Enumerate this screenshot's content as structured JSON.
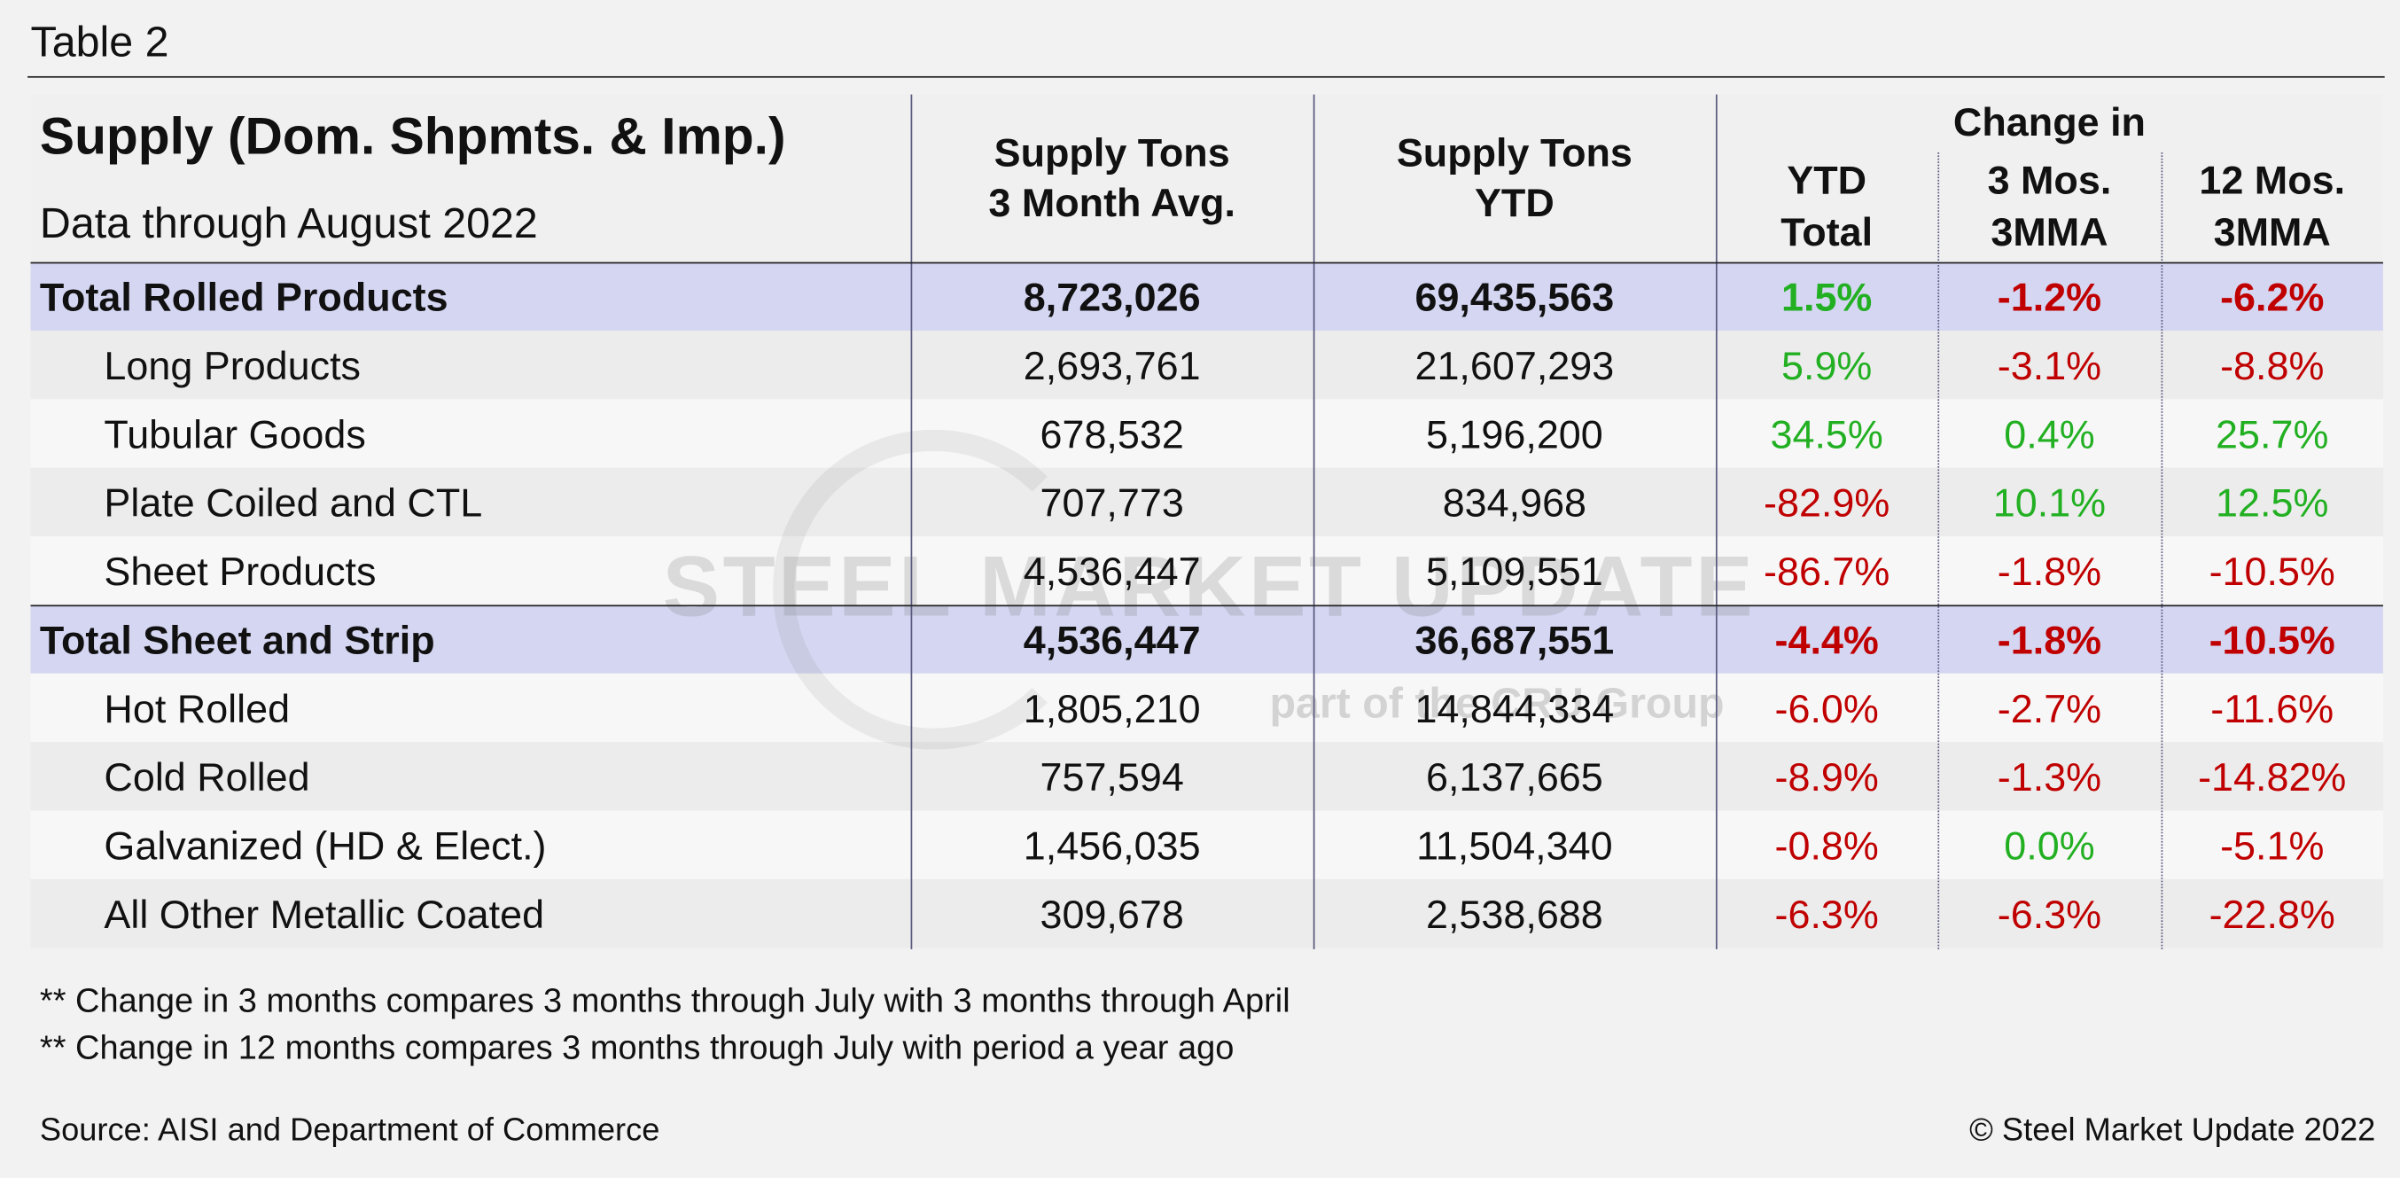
{
  "header": {
    "title": "Table 2"
  },
  "table": {
    "title": "Supply (Dom. Shpmts. & Imp.)",
    "subtitle": "Data through August 2022",
    "columns": [
      [
        "Supply Tons",
        "3 Month Avg."
      ],
      [
        "Supply Tons",
        "YTD"
      ],
      [
        "YTD",
        "Total"
      ],
      [
        "3 Mos.",
        "3MMA"
      ],
      [
        "12 Mos.",
        "3MMA"
      ]
    ],
    "group_label": "Change in",
    "rows": [
      {
        "label": "Total Rolled Products",
        "total": true,
        "cells": [
          "8,723,026",
          "69,435,563",
          "1.5%",
          "-1.2%",
          "-6.2%"
        ]
      },
      {
        "label": "Long Products",
        "total": false,
        "cells": [
          "2,693,761",
          "21,607,293",
          "5.9%",
          "-3.1%",
          "-8.8%"
        ]
      },
      {
        "label": "Tubular Goods",
        "total": false,
        "cells": [
          "678,532",
          "5,196,200",
          "34.5%",
          "0.4%",
          "25.7%"
        ]
      },
      {
        "label": "Plate Coiled and CTL",
        "total": false,
        "cells": [
          "707,773",
          "834,968",
          "-82.9%",
          "10.1%",
          "12.5%"
        ]
      },
      {
        "label": "Sheet Products",
        "total": false,
        "cells": [
          "4,536,447",
          "5,109,551",
          "-86.7%",
          "-1.8%",
          "-10.5%"
        ]
      },
      {
        "label": "Total Sheet and Strip",
        "total": true,
        "cells": [
          "4,536,447",
          "36,687,551",
          "-4.4%",
          "-1.8%",
          "-10.5%"
        ]
      },
      {
        "label": "Hot Rolled",
        "total": false,
        "cells": [
          "1,805,210",
          "14,844,334",
          "-6.0%",
          "-2.7%",
          "-11.6%"
        ]
      },
      {
        "label": "Cold Rolled",
        "total": false,
        "cells": [
          "757,594",
          "6,137,665",
          "-8.9%",
          "-1.3%",
          "-14.82%"
        ]
      },
      {
        "label": "Galvanized (HD & Elect.)",
        "total": false,
        "cells": [
          "1,456,035",
          "11,504,340",
          "-0.8%",
          "0.0%",
          "-5.1%"
        ]
      },
      {
        "label": "All Other Metallic Coated",
        "total": false,
        "cells": [
          "309,678",
          "2,538,688",
          "-6.3%",
          "-6.3%",
          "-22.8%"
        ]
      }
    ],
    "colors": {
      "positive": "#22b022",
      "negative": "#c00000",
      "total_row": "#d4d6f2"
    }
  },
  "notes": [
    "** Change in 3 months compares 3 months through July with 3 months through April",
    "** Change in 12 months compares 3 months through July with period a year ago"
  ],
  "source": "Source: AISI and Department of Commerce",
  "copyright": "© Steel Market Update 2022",
  "watermark": {
    "name": "STEEL MARKET UPDATE",
    "tagline": "part of the CRU Group"
  }
}
